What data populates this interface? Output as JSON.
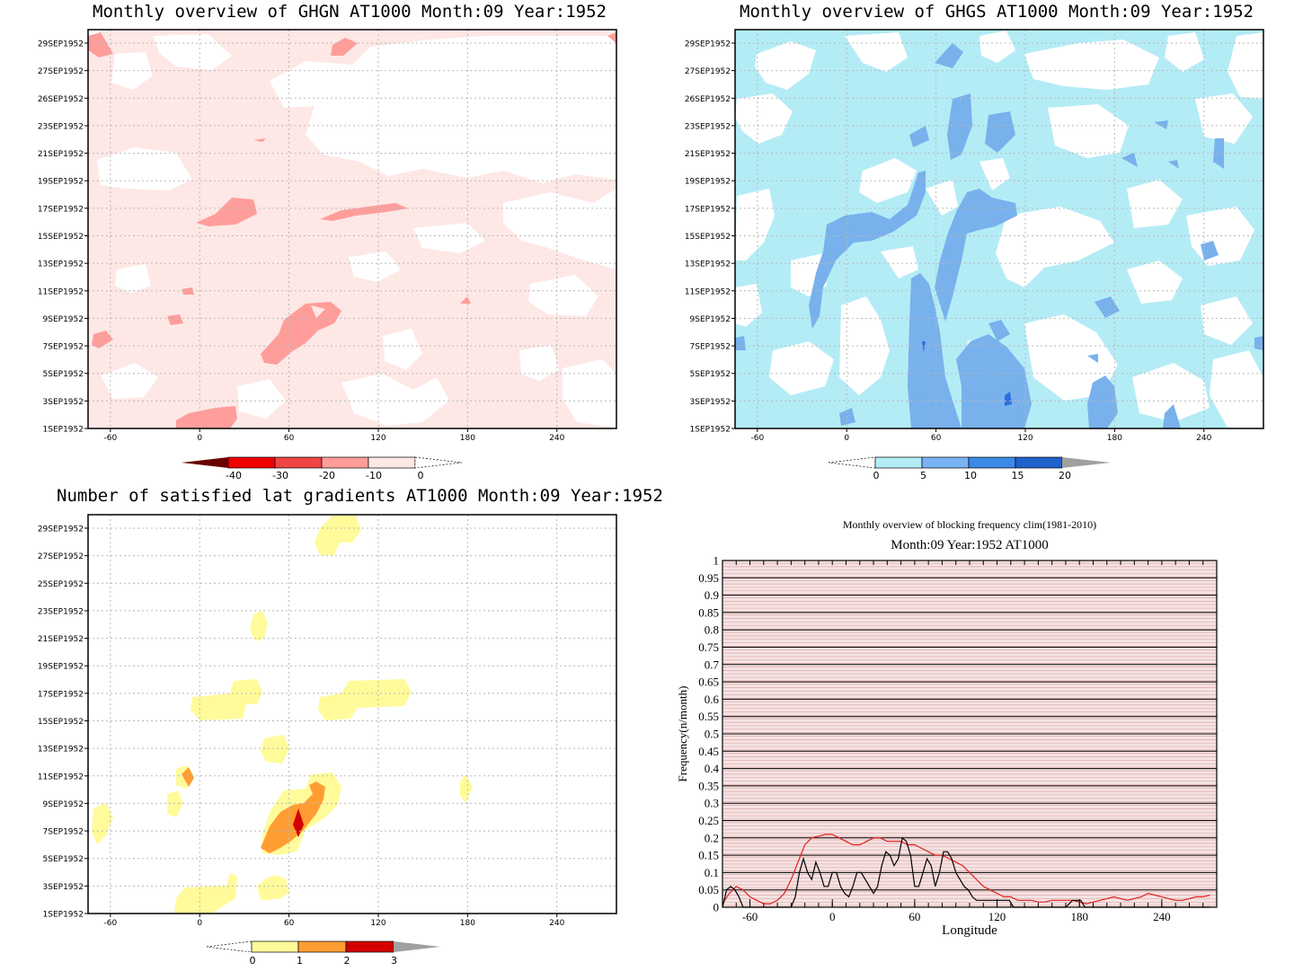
{
  "panels": {
    "ghgn": {
      "title": "Monthly overview of GHGN AT1000 Month:09 Year:1952",
      "y_labels": [
        "29SEP1952",
        "27SEP1952",
        "26SEP1952",
        "23SEP1952",
        "21SEP1952",
        "19SEP1952",
        "17SEP1952",
        "15SEP1952",
        "13SEP1952",
        "11SEP1952",
        "9SEP1952",
        "7SEP1952",
        "5SEP1952",
        "3SEP1952",
        "1SEP1952"
      ],
      "x_ticks": [
        "-60",
        "0",
        "60",
        "120",
        "180",
        "240"
      ],
      "colorbar": {
        "labels": [
          "-40",
          "-30",
          "-20",
          "-10",
          "0"
        ],
        "colors": [
          "#d21a1a",
          "#f03a3a",
          "#ff9a9a",
          "#ffe8e8"
        ]
      },
      "colors": {
        "light": "#fde8e6",
        "mid": "#ff9d9a"
      }
    },
    "ghgs": {
      "title": "Monthly overview of GHGS AT1000 Month:09 Year:1952",
      "y_labels": [
        "29SEP1952",
        "27SEP1952",
        "26SEP1952",
        "23SEP1952",
        "21SEP1952",
        "19SEP1952",
        "17SEP1952",
        "15SEP1952",
        "13SEP1952",
        "11SEP1952",
        "9SEP1952",
        "7SEP1952",
        "5SEP1952",
        "3SEP1952",
        "1SEP1952"
      ],
      "x_ticks": [
        "-60",
        "0",
        "60",
        "120",
        "180",
        "240"
      ],
      "colorbar": {
        "labels": [
          "0",
          "5",
          "10",
          "15",
          "20"
        ],
        "colors": [
          "#b4ecf6",
          "#78b4f2",
          "#3a8ae6",
          "#1f62cc"
        ]
      },
      "colors": {
        "light": "#b4ecf6",
        "mid": "#78b1ec"
      }
    },
    "sat": {
      "title": "Number of satisfied lat gradients AT1000 Month:09 Year:1952",
      "y_labels": [
        "29SEP1952",
        "27SEP1952",
        "25SEP1952",
        "23SEP1952",
        "21SEP1952",
        "19SEP1952",
        "17SEP1952",
        "15SEP1952",
        "13SEP1952",
        "11SEP1952",
        "9SEP1952",
        "7SEP1952",
        "5SEP1952",
        "3SEP1952",
        "1SEP1952"
      ],
      "x_ticks": [
        "-60",
        "0",
        "60",
        "120",
        "180",
        "240"
      ],
      "colorbar": {
        "labels": [
          "0",
          "1",
          "2",
          "3"
        ],
        "colors": [
          "#fffb9a",
          "#ff9d33",
          "#d40000"
        ]
      },
      "colors": {
        "yellow": "#fffb9a",
        "orange": "#ff9d33",
        "red": "#d40000"
      }
    }
  },
  "chart_data": [
    {
      "type": "heatmap",
      "title": "Monthly overview of GHGN AT1000 Month:09 Year:1952",
      "xlim": [
        -75,
        280
      ],
      "x_ticks": [
        -60,
        0,
        60,
        120,
        180,
        240
      ],
      "y_ticks": [
        "29SEP1952",
        "27SEP1952",
        "26SEP1952",
        "23SEP1952",
        "21SEP1952",
        "19SEP1952",
        "17SEP1952",
        "15SEP1952",
        "13SEP1952",
        "11SEP1952",
        "9SEP1952",
        "7SEP1952",
        "5SEP1952",
        "3SEP1952",
        "1SEP1952"
      ],
      "levels": [
        -40,
        -30,
        -20,
        -10,
        0
      ],
      "grid": true
    },
    {
      "type": "heatmap",
      "title": "Monthly overview of GHGS AT1000 Month:09 Year:1952",
      "xlim": [
        -75,
        280
      ],
      "x_ticks": [
        -60,
        0,
        60,
        120,
        180,
        240
      ],
      "y_ticks": [
        "29SEP1952",
        "27SEP1952",
        "26SEP1952",
        "23SEP1952",
        "21SEP1952",
        "19SEP1952",
        "17SEP1952",
        "15SEP1952",
        "13SEP1952",
        "11SEP1952",
        "9SEP1952",
        "7SEP1952",
        "5SEP1952",
        "3SEP1952",
        "1SEP1952"
      ],
      "levels": [
        0,
        5,
        10,
        15,
        20
      ],
      "grid": true
    },
    {
      "type": "heatmap",
      "title": "Number of satisfied lat gradients AT1000 Month:09 Year:1952",
      "xlim": [
        -75,
        280
      ],
      "x_ticks": [
        -60,
        0,
        60,
        120,
        180,
        240
      ],
      "y_ticks": [
        "29SEP1952",
        "27SEP1952",
        "25SEP1952",
        "23SEP1952",
        "21SEP1952",
        "19SEP1952",
        "17SEP1952",
        "15SEP1952",
        "13SEP1952",
        "11SEP1952",
        "9SEP1952",
        "7SEP1952",
        "5SEP1952",
        "3SEP1952",
        "1SEP1952"
      ],
      "levels": [
        0,
        1,
        2,
        3
      ],
      "grid": true
    },
    {
      "type": "line",
      "title": "Monthly overview of blocking frequency clim(1981-2010)",
      "subtitle": "Month:09 Year:1952  AT1000",
      "xlabel": "Longitude",
      "ylabel": "Frequency(n/month)",
      "xlim": [
        -80,
        280
      ],
      "ylim": [
        0,
        1
      ],
      "x_ticks": [
        -60,
        0,
        60,
        120,
        180,
        240
      ],
      "y_ticks": [
        "0",
        "0.05",
        "0.1",
        "0.15",
        "0.2",
        "0.25",
        "0.3",
        "0.35",
        "0.4",
        "0.45",
        "0.5",
        "0.55",
        "0.6",
        "0.65",
        "0.7",
        "0.75",
        "0.8",
        "0.85",
        "0.9",
        "0.95",
        "1"
      ],
      "background_color": "#f4e3e3",
      "series": [
        {
          "color": "#e02020",
          "x": [
            -80,
            -75,
            -70,
            -65,
            -60,
            -55,
            -50,
            -45,
            -40,
            -35,
            -30,
            -25,
            -20,
            -15,
            -10,
            -5,
            0,
            5,
            10,
            15,
            20,
            25,
            30,
            35,
            40,
            45,
            50,
            55,
            60,
            65,
            70,
            75,
            80,
            85,
            90,
            95,
            100,
            105,
            110,
            115,
            120,
            125,
            130,
            135,
            140,
            145,
            150,
            155,
            160,
            165,
            170,
            175,
            180,
            185,
            190,
            195,
            200,
            205,
            210,
            215,
            220,
            225,
            230,
            235,
            240,
            245,
            250,
            255,
            260,
            265,
            270,
            275
          ],
          "values": [
            0.01,
            0.04,
            0.06,
            0.05,
            0.03,
            0.02,
            0.01,
            0.01,
            0.02,
            0.04,
            0.08,
            0.13,
            0.18,
            0.2,
            0.205,
            0.21,
            0.21,
            0.2,
            0.19,
            0.18,
            0.18,
            0.19,
            0.2,
            0.2,
            0.19,
            0.19,
            0.19,
            0.18,
            0.18,
            0.17,
            0.16,
            0.15,
            0.15,
            0.14,
            0.13,
            0.12,
            0.1,
            0.08,
            0.06,
            0.05,
            0.04,
            0.03,
            0.03,
            0.02,
            0.02,
            0.02,
            0.015,
            0.015,
            0.02,
            0.02,
            0.02,
            0.02,
            0.015,
            0.01,
            0.015,
            0.02,
            0.025,
            0.03,
            0.025,
            0.02,
            0.025,
            0.03,
            0.04,
            0.035,
            0.03,
            0.025,
            0.02,
            0.02,
            0.025,
            0.03,
            0.03,
            0.035
          ]
        },
        {
          "color": "#000000",
          "x": [
            -80,
            -77,
            -74,
            -71,
            -68,
            -65,
            -62,
            -59,
            -56,
            -53,
            -50,
            -45,
            -40,
            -35,
            -30,
            -27,
            -24,
            -21,
            -18,
            -15,
            -12,
            -9,
            -6,
            -3,
            0,
            3,
            6,
            9,
            12,
            15,
            18,
            21,
            24,
            27,
            30,
            33,
            36,
            39,
            42,
            45,
            48,
            51,
            54,
            57,
            60,
            63,
            66,
            69,
            72,
            75,
            78,
            81,
            84,
            87,
            90,
            93,
            96,
            99,
            102,
            105,
            108,
            111,
            114,
            117,
            120,
            123,
            126,
            129,
            132,
            135,
            138,
            141,
            145,
            150,
            155,
            160,
            165,
            170,
            175,
            178,
            181,
            184,
            190,
            200,
            210,
            220,
            230,
            240,
            250,
            260,
            270,
            275
          ],
          "values": [
            0,
            0.05,
            0.06,
            0.05,
            0.03,
            0,
            0,
            0,
            0,
            0,
            0,
            0,
            0,
            0,
            0,
            0.03,
            0.1,
            0.14,
            0.1,
            0.08,
            0.13,
            0.1,
            0.06,
            0.06,
            0.1,
            0.1,
            0.06,
            0.04,
            0.03,
            0.06,
            0.1,
            0.1,
            0.08,
            0.06,
            0.04,
            0.06,
            0.12,
            0.16,
            0.15,
            0.12,
            0.14,
            0.2,
            0.19,
            0.15,
            0.06,
            0.06,
            0.1,
            0.14,
            0.12,
            0.06,
            0.1,
            0.16,
            0.16,
            0.14,
            0.1,
            0.08,
            0.06,
            0.05,
            0.03,
            0.02,
            0.02,
            0.02,
            0.02,
            0.02,
            0.02,
            0.02,
            0.02,
            0.02,
            0.0,
            0.0,
            0,
            0,
            0,
            0,
            0,
            0,
            0,
            0,
            0.02,
            0.02,
            0.02,
            0,
            0,
            0,
            0,
            0,
            0,
            0,
            0,
            0,
            0,
            0
          ]
        }
      ],
      "grid": true
    }
  ]
}
